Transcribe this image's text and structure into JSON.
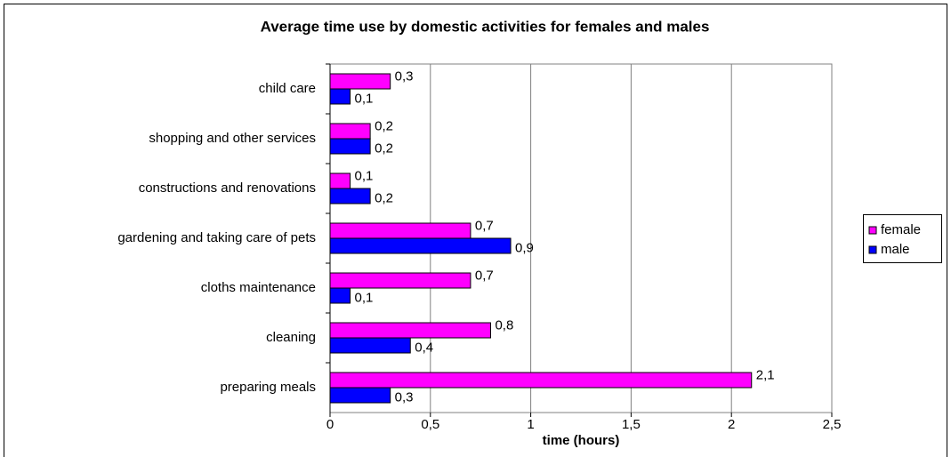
{
  "chart_data": {
    "type": "bar",
    "orientation": "horizontal",
    "title": "Average time use by domestic activities for females and males",
    "x_label": "time (hours)",
    "categories": [
      "child care",
      "shopping and other services",
      "constructions and renovations",
      "gardening and taking care of pets",
      "cloths maintenance",
      "cleaning",
      "preparing meals"
    ],
    "series": [
      {
        "name": "female",
        "color": "#ff00ff",
        "values": [
          0.3,
          0.2,
          0.1,
          0.7,
          0.7,
          0.8,
          2.1
        ],
        "value_labels": [
          "0,3",
          "0,2",
          "0,1",
          "0,7",
          "0,7",
          "0,8",
          "2,1"
        ]
      },
      {
        "name": "male",
        "color": "#0000ff",
        "values": [
          0.1,
          0.2,
          0.2,
          0.9,
          0.1,
          0.4,
          0.3
        ],
        "value_labels": [
          "0,1",
          "0,2",
          "0,2",
          "0,9",
          "0,1",
          "0,4",
          "0,3"
        ]
      }
    ],
    "xlim": [
      0,
      2.5
    ],
    "xticks": [
      0,
      {
        "value": 0.5,
        "label": "0,5"
      },
      1,
      {
        "value": 1.5,
        "label": "1,5"
      },
      2,
      {
        "value": 2.5,
        "label": "2,5"
      }
    ],
    "grid": true,
    "legend": "right"
  }
}
